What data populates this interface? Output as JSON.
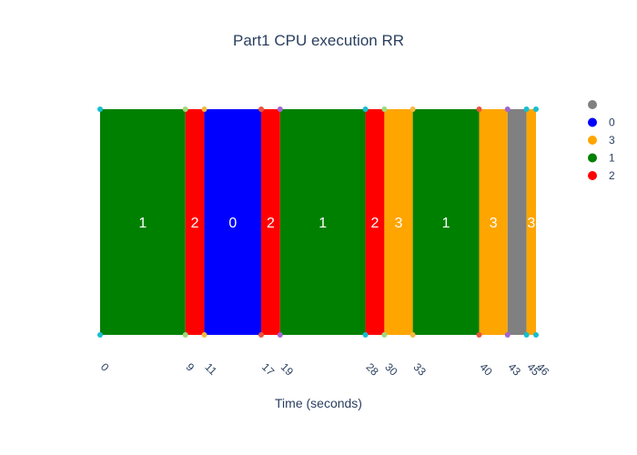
{
  "chart_data": {
    "type": "bar",
    "title": "Part1 CPU execution RR",
    "xlabel": "Time (seconds)",
    "ylabel": "",
    "xlim": [
      0,
      46
    ],
    "grid": false,
    "legend_position": "top-right",
    "tick_values": [
      0,
      9,
      11,
      17,
      19,
      28,
      30,
      33,
      40,
      43,
      45,
      46
    ],
    "tick_labels": [
      "0",
      "9",
      "11",
      "17",
      "19",
      "28",
      "30",
      "33",
      "40",
      "43",
      "45",
      "46"
    ],
    "segments": [
      {
        "process": "1",
        "start": 0,
        "end": 9,
        "label": "1"
      },
      {
        "process": "2",
        "start": 9,
        "end": 11,
        "label": "2"
      },
      {
        "process": "0",
        "start": 11,
        "end": 17,
        "label": "0"
      },
      {
        "process": "2",
        "start": 17,
        "end": 19,
        "label": "2"
      },
      {
        "process": "1",
        "start": 19,
        "end": 28,
        "label": "1"
      },
      {
        "process": "2",
        "start": 28,
        "end": 30,
        "label": "2"
      },
      {
        "process": "3",
        "start": 30,
        "end": 33,
        "label": "3"
      },
      {
        "process": "1",
        "start": 33,
        "end": 40,
        "label": "1"
      },
      {
        "process": "3",
        "start": 40,
        "end": 43,
        "label": "3"
      },
      {
        "process": "",
        "start": 43,
        "end": 45,
        "label": ""
      },
      {
        "process": "3",
        "start": 45,
        "end": 46,
        "label": "3"
      }
    ],
    "legend": [
      {
        "name": "",
        "color": "#808080"
      },
      {
        "name": "0",
        "color": "#0000ff"
      },
      {
        "name": "3",
        "color": "#ffa500"
      },
      {
        "name": "1",
        "color": "#008000"
      },
      {
        "name": "2",
        "color": "#ff0000"
      }
    ],
    "colors": {
      "": "#808080",
      "0": "#0000ff",
      "1": "#008000",
      "2": "#ff0000",
      "3": "#ffa500"
    },
    "marker_colors": [
      "#17becf",
      "#9ed97a",
      "#f5b942",
      "#e8553d",
      "#a066d3",
      "#17becf",
      "#9ed97a",
      "#f5b942",
      "#e8553d",
      "#a066d3",
      "#17becf",
      "#17becf"
    ]
  }
}
